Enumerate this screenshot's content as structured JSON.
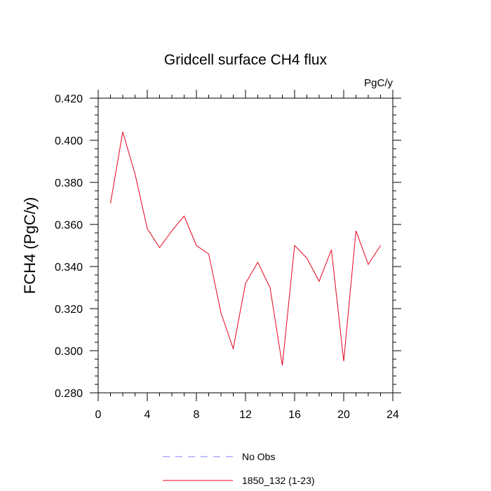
{
  "chart_data": {
    "type": "line",
    "title": "Gridcell surface CH4 flux",
    "units": "PgC/y",
    "xlabel": "",
    "ylabel": "FCH4  (PgC/y)",
    "xlim": [
      0,
      24
    ],
    "ylim": [
      0.28,
      0.42
    ],
    "x_ticks": [
      0,
      4,
      8,
      12,
      16,
      20,
      24
    ],
    "x_tick_labels": [
      "0",
      "4",
      "8",
      "12",
      "16",
      "20",
      "24"
    ],
    "y_ticks": [
      0.28,
      0.3,
      0.32,
      0.34,
      0.36,
      0.38,
      0.4,
      0.42
    ],
    "y_tick_labels": [
      "0.280",
      "0.300",
      "0.320",
      "0.340",
      "0.360",
      "0.380",
      "0.400",
      "0.420"
    ],
    "grid": false,
    "legend_position": "bottom",
    "series": [
      {
        "name": "1850_132 (1-23)",
        "color": "#e8001c",
        "x": [
          1,
          2,
          3,
          4,
          5,
          6,
          7,
          8,
          9,
          10,
          11,
          12,
          13,
          14,
          15,
          16,
          17,
          18,
          19,
          20,
          21,
          22,
          23
        ],
        "values": [
          0.37,
          0.404,
          0.384,
          0.358,
          0.349,
          0.357,
          0.364,
          0.35,
          0.346,
          0.318,
          0.301,
          0.332,
          0.342,
          0.33,
          0.293,
          0.35,
          0.344,
          0.333,
          0.348,
          0.295,
          0.357,
          0.341,
          0.35
        ]
      }
    ],
    "legend": [
      {
        "label": "No Obs",
        "color": "#7f7fff",
        "style": "dashed"
      },
      {
        "label": "1850_132 (1-23)",
        "color": "#e8001c",
        "style": "solid"
      }
    ]
  }
}
